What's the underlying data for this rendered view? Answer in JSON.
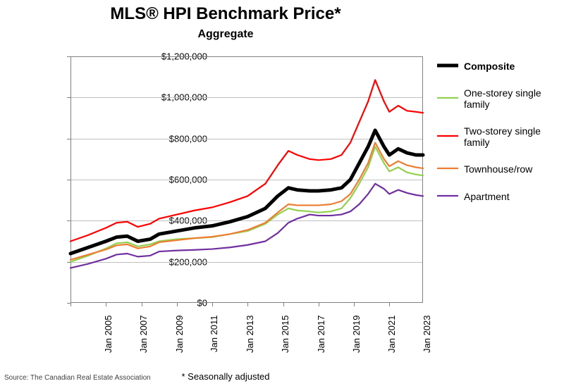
{
  "title": "MLS® HPI Benchmark Price*",
  "title_fontsize": 24,
  "subtitle": "Aggregate",
  "subtitle_fontsize": 16,
  "footnote": "* Seasonally adjusted",
  "source": "Source: The Canadian Real Estate Association",
  "chart": {
    "type": "line",
    "background_color": "#ffffff",
    "grid_color": "#bfbfbf",
    "border_color": "#808080",
    "x": {
      "min_year": 2005,
      "max_year": 2024.9,
      "tick_years": [
        2005,
        2007,
        2009,
        2011,
        2013,
        2015,
        2017,
        2019,
        2021,
        2023
      ],
      "tick_labels": [
        "Jan 2005",
        "Jan 2007",
        "Jan 2009",
        "Jan 2011",
        "Jan 2013",
        "Jan 2015",
        "Jan 2017",
        "Jan 2019",
        "Jan 2021",
        "Jan 2023"
      ],
      "tick_fontsize": 13
    },
    "y": {
      "min": 0,
      "max": 1200000,
      "tick_step": 200000,
      "tick_labels": [
        "$0",
        "$200,000",
        "$400,000",
        "$600,000",
        "$800,000",
        "$1,000,000",
        "$1,200,000"
      ],
      "tick_fontsize": 13
    },
    "series": [
      {
        "name": "Composite",
        "color": "#000000",
        "line_width": 5,
        "legend_weight": "bold",
        "points": [
          [
            2005.0,
            240000
          ],
          [
            2006.0,
            270000
          ],
          [
            2007.0,
            300000
          ],
          [
            2007.6,
            320000
          ],
          [
            2008.2,
            325000
          ],
          [
            2008.8,
            300000
          ],
          [
            2009.5,
            310000
          ],
          [
            2010.0,
            335000
          ],
          [
            2011.0,
            350000
          ],
          [
            2012.0,
            365000
          ],
          [
            2013.0,
            375000
          ],
          [
            2014.0,
            395000
          ],
          [
            2015.0,
            420000
          ],
          [
            2016.0,
            460000
          ],
          [
            2016.7,
            520000
          ],
          [
            2017.3,
            560000
          ],
          [
            2017.8,
            550000
          ],
          [
            2018.5,
            545000
          ],
          [
            2019.0,
            545000
          ],
          [
            2019.7,
            550000
          ],
          [
            2020.3,
            560000
          ],
          [
            2020.8,
            600000
          ],
          [
            2021.3,
            680000
          ],
          [
            2021.8,
            760000
          ],
          [
            2022.2,
            840000
          ],
          [
            2022.7,
            760000
          ],
          [
            2023.0,
            720000
          ],
          [
            2023.5,
            750000
          ],
          [
            2024.0,
            730000
          ],
          [
            2024.5,
            720000
          ],
          [
            2024.9,
            720000
          ]
        ]
      },
      {
        "name": "One-storey single family",
        "color": "#92d050",
        "line_width": 2.2,
        "legend_weight": "normal",
        "points": [
          [
            2005.0,
            200000
          ],
          [
            2006.0,
            230000
          ],
          [
            2007.0,
            265000
          ],
          [
            2007.6,
            290000
          ],
          [
            2008.2,
            295000
          ],
          [
            2008.8,
            275000
          ],
          [
            2009.5,
            285000
          ],
          [
            2010.0,
            300000
          ],
          [
            2011.0,
            310000
          ],
          [
            2012.0,
            315000
          ],
          [
            2013.0,
            320000
          ],
          [
            2014.0,
            335000
          ],
          [
            2015.0,
            350000
          ],
          [
            2016.0,
            385000
          ],
          [
            2016.7,
            430000
          ],
          [
            2017.3,
            460000
          ],
          [
            2017.8,
            450000
          ],
          [
            2018.5,
            445000
          ],
          [
            2019.0,
            440000
          ],
          [
            2019.7,
            445000
          ],
          [
            2020.3,
            460000
          ],
          [
            2020.8,
            510000
          ],
          [
            2021.3,
            580000
          ],
          [
            2021.8,
            660000
          ],
          [
            2022.2,
            760000
          ],
          [
            2022.7,
            680000
          ],
          [
            2023.0,
            640000
          ],
          [
            2023.5,
            660000
          ],
          [
            2024.0,
            635000
          ],
          [
            2024.5,
            625000
          ],
          [
            2024.9,
            620000
          ]
        ]
      },
      {
        "name": "Two-storey single family",
        "color": "#ff0000",
        "line_width": 2.2,
        "legend_weight": "normal",
        "points": [
          [
            2005.0,
            300000
          ],
          [
            2006.0,
            330000
          ],
          [
            2007.0,
            365000
          ],
          [
            2007.6,
            390000
          ],
          [
            2008.2,
            395000
          ],
          [
            2008.8,
            370000
          ],
          [
            2009.5,
            385000
          ],
          [
            2010.0,
            410000
          ],
          [
            2011.0,
            430000
          ],
          [
            2012.0,
            450000
          ],
          [
            2013.0,
            465000
          ],
          [
            2014.0,
            490000
          ],
          [
            2015.0,
            520000
          ],
          [
            2016.0,
            580000
          ],
          [
            2016.7,
            670000
          ],
          [
            2017.3,
            740000
          ],
          [
            2017.8,
            720000
          ],
          [
            2018.5,
            700000
          ],
          [
            2019.0,
            695000
          ],
          [
            2019.7,
            700000
          ],
          [
            2020.3,
            720000
          ],
          [
            2020.8,
            780000
          ],
          [
            2021.3,
            880000
          ],
          [
            2021.8,
            980000
          ],
          [
            2022.2,
            1085000
          ],
          [
            2022.7,
            980000
          ],
          [
            2023.0,
            930000
          ],
          [
            2023.5,
            960000
          ],
          [
            2024.0,
            935000
          ],
          [
            2024.5,
            930000
          ],
          [
            2024.9,
            925000
          ]
        ]
      },
      {
        "name": "Townhouse/row",
        "color": "#ed7d31",
        "line_width": 2.2,
        "legend_weight": "normal",
        "points": [
          [
            2005.0,
            210000
          ],
          [
            2006.0,
            235000
          ],
          [
            2007.0,
            260000
          ],
          [
            2007.6,
            280000
          ],
          [
            2008.2,
            285000
          ],
          [
            2008.8,
            265000
          ],
          [
            2009.5,
            275000
          ],
          [
            2010.0,
            295000
          ],
          [
            2011.0,
            305000
          ],
          [
            2012.0,
            315000
          ],
          [
            2013.0,
            322000
          ],
          [
            2014.0,
            335000
          ],
          [
            2015.0,
            355000
          ],
          [
            2016.0,
            390000
          ],
          [
            2016.7,
            440000
          ],
          [
            2017.3,
            480000
          ],
          [
            2017.8,
            475000
          ],
          [
            2018.5,
            475000
          ],
          [
            2019.0,
            475000
          ],
          [
            2019.7,
            480000
          ],
          [
            2020.3,
            495000
          ],
          [
            2020.8,
            530000
          ],
          [
            2021.3,
            600000
          ],
          [
            2021.8,
            680000
          ],
          [
            2022.2,
            780000
          ],
          [
            2022.7,
            700000
          ],
          [
            2023.0,
            665000
          ],
          [
            2023.5,
            690000
          ],
          [
            2024.0,
            670000
          ],
          [
            2024.5,
            660000
          ],
          [
            2024.9,
            655000
          ]
        ]
      },
      {
        "name": "Apartment",
        "color": "#7030a0",
        "line_width": 2.2,
        "legend_weight": "normal",
        "points": [
          [
            2005.0,
            170000
          ],
          [
            2006.0,
            190000
          ],
          [
            2007.0,
            215000
          ],
          [
            2007.6,
            235000
          ],
          [
            2008.2,
            240000
          ],
          [
            2008.8,
            225000
          ],
          [
            2009.5,
            230000
          ],
          [
            2010.0,
            250000
          ],
          [
            2011.0,
            255000
          ],
          [
            2012.0,
            258000
          ],
          [
            2013.0,
            262000
          ],
          [
            2014.0,
            270000
          ],
          [
            2015.0,
            282000
          ],
          [
            2016.0,
            300000
          ],
          [
            2016.7,
            340000
          ],
          [
            2017.3,
            390000
          ],
          [
            2017.8,
            410000
          ],
          [
            2018.5,
            430000
          ],
          [
            2019.0,
            425000
          ],
          [
            2019.7,
            425000
          ],
          [
            2020.3,
            430000
          ],
          [
            2020.8,
            445000
          ],
          [
            2021.3,
            480000
          ],
          [
            2021.8,
            530000
          ],
          [
            2022.2,
            580000
          ],
          [
            2022.7,
            555000
          ],
          [
            2023.0,
            530000
          ],
          [
            2023.5,
            550000
          ],
          [
            2024.0,
            535000
          ],
          [
            2024.5,
            525000
          ],
          [
            2024.9,
            520000
          ]
        ]
      }
    ]
  }
}
